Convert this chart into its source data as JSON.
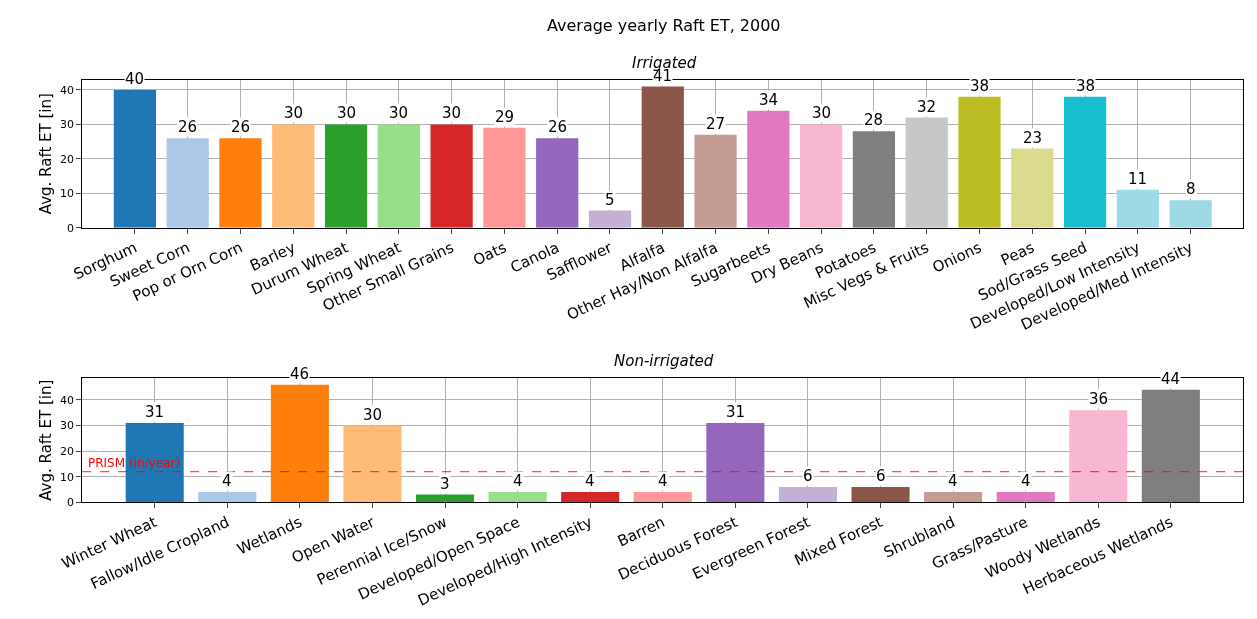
{
  "chart_data": [
    {
      "type": "bar",
      "title": "Average yearly Raft ET, 2000",
      "subtitle": "Irrigated",
      "ylabel": "Avg. Raft ET [in]",
      "categories": [
        "Sorghum",
        "Sweet Corn",
        "Pop or Orn Corn",
        "Barley",
        "Durum Wheat",
        "Spring Wheat",
        "Other Small Grains",
        "Oats",
        "Canola",
        "Safflower",
        "Alfalfa",
        "Other Hay/Non Alfalfa",
        "Sugarbeets",
        "Dry Beans",
        "Potatoes",
        "Misc Vegs & Fruits",
        "Onions",
        "Peas",
        "Sod/Grass Seed",
        "Developed/Low Intensity",
        "Developed/Med Intensity"
      ],
      "values": [
        40,
        26,
        26,
        30,
        30,
        30,
        30,
        29,
        26,
        5,
        41,
        27,
        34,
        30,
        28,
        32,
        38,
        23,
        38,
        11,
        8
      ],
      "colors": [
        "#1f77b4",
        "#aec7e8",
        "#ff7f0e",
        "#ffbb78",
        "#2ca02c",
        "#98df8a",
        "#d62728",
        "#ff9896",
        "#9467bd",
        "#c5b0d5",
        "#8c564b",
        "#c49c94",
        "#e377c2",
        "#f7b6d2",
        "#7f7f7f",
        "#c7c7c7",
        "#bcbd22",
        "#dbdb8d",
        "#17becf",
        "#9edae5",
        "#9edae5"
      ],
      "ylim": [
        0,
        43
      ],
      "yticks": [
        0,
        10,
        20,
        30,
        40
      ],
      "grid": true,
      "data_labels": true
    },
    {
      "type": "bar",
      "title": "Non-irrigated",
      "ylabel": "Avg. Raft ET [in]",
      "categories": [
        "Winter Wheat",
        "Fallow/Idle Cropland",
        "Wetlands",
        "Open Water",
        "Perennial Ice/Snow",
        "Developed/Open Space",
        "Developed/High Intensity",
        "Barren",
        "Deciduous Forest",
        "Evergreen Forest",
        "Mixed Forest",
        "Shrubland",
        "Grass/Pasture",
        "Woody Wetlands",
        "Herbaceous Wetlands"
      ],
      "values": [
        31,
        4,
        46,
        30,
        3,
        4,
        4,
        4,
        31,
        6,
        6,
        4,
        4,
        36,
        44
      ],
      "colors": [
        "#1f77b4",
        "#aec7e8",
        "#ff7f0e",
        "#ffbb78",
        "#2ca02c",
        "#98df8a",
        "#d62728",
        "#ff9896",
        "#9467bd",
        "#c5b0d5",
        "#8c564b",
        "#c49c94",
        "#e377c2",
        "#f7b6d2",
        "#7f7f7f"
      ],
      "ylim": [
        0,
        48.5
      ],
      "yticks": [
        0,
        10,
        20,
        30,
        40
      ],
      "grid": true,
      "data_labels": true,
      "ref_lines": [
        {
          "axis": "y",
          "value": 12,
          "label": "PRISM (in/year)",
          "color": "#ff0000",
          "line_style": "dashed"
        }
      ]
    }
  ]
}
